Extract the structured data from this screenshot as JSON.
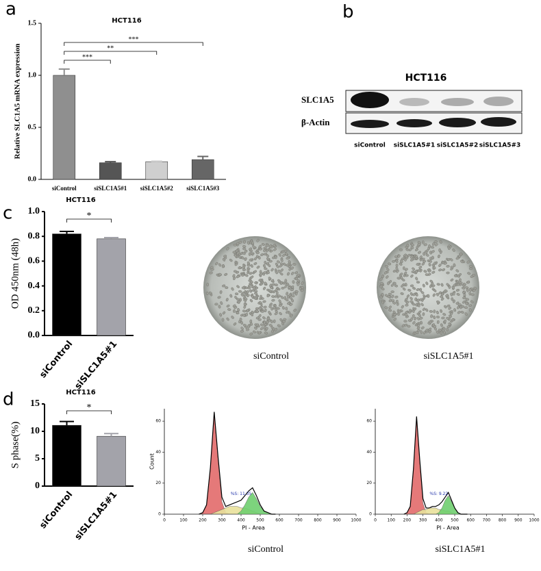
{
  "panel_labels": [
    "a",
    "b",
    "c",
    "d"
  ],
  "blot": {
    "title": "HCT116",
    "rows": [
      "SLC1A5",
      "β-Actin"
    ],
    "lanes": [
      "siControl",
      "siSLC1A5#1",
      "siSLC1A5#2",
      "siSLC1A5#3"
    ]
  },
  "micrographs": [
    "siControl",
    "siSLC1A5#1"
  ],
  "chart_data": [
    {
      "type": "bar",
      "title": "HCT116",
      "y_label": "Relative SLC1A5 mRNA expression",
      "categories": [
        "siControl",
        "siSLC1A5#1",
        "siSLC1A5#2",
        "siSLC1A5#3"
      ],
      "values": [
        1.0,
        0.16,
        0.17,
        0.19
      ],
      "errors": [
        0.06,
        0.01,
        0.005,
        0.03
      ],
      "colors": [
        "#8f8f8f",
        "#555555",
        "#cfcfcf",
        "#666666"
      ],
      "ylim": [
        0,
        1.5
      ],
      "yticks": [
        {
          "value": 0,
          "label": "0.0"
        },
        {
          "value": 0.5,
          "label": "0.5"
        },
        {
          "value": 1.0,
          "label": "1.0"
        },
        {
          "value": 1.5,
          "label": "1.5"
        }
      ],
      "brackets": [
        {
          "label": "***",
          "between": [
            "siControl",
            "siSLC1A5#1"
          ]
        },
        {
          "label": "**",
          "between": [
            "siControl",
            "siSLC1A5#2"
          ]
        },
        {
          "label": "***",
          "between": [
            "siControl",
            "siSLC1A5#3"
          ]
        }
      ]
    },
    {
      "type": "bar",
      "title": "HCT116",
      "y_label": "OD 450nm (48h)",
      "categories": [
        "siControl",
        "siSLC1A5#1"
      ],
      "values": [
        0.82,
        0.78
      ],
      "errors": [
        0.02,
        0.01
      ],
      "colors": [
        "#000000",
        "#a3a3aa"
      ],
      "ylim": [
        0,
        1.0
      ],
      "yticks": [
        {
          "value": 0,
          "label": "0.0"
        },
        {
          "value": 0.2,
          "label": "0.2"
        },
        {
          "value": 0.4,
          "label": "0.4"
        },
        {
          "value": 0.6,
          "label": "0.6"
        },
        {
          "value": 0.8,
          "label": "0.8"
        },
        {
          "value": 1.0,
          "label": "1.0"
        }
      ],
      "brackets": [
        {
          "label": "*",
          "between": [
            "siControl",
            "siSLC1A5#1"
          ]
        }
      ]
    },
    {
      "type": "bar",
      "title": "HCT116",
      "y_label": "S phase(%)",
      "categories": [
        "siControl",
        "siSLC1A5#1"
      ],
      "values": [
        11.1,
        9.1
      ],
      "errors": [
        0.7,
        0.5
      ],
      "colors": [
        "#000000",
        "#a3a3aa"
      ],
      "ylim": [
        0,
        15
      ],
      "yticks": [
        0,
        5,
        10,
        15
      ],
      "brackets": [
        {
          "label": "*",
          "between": [
            "siControl",
            "siSLC1A5#1"
          ]
        }
      ]
    },
    {
      "type": "flow",
      "x_label": "PI - Area",
      "y_label": "Count",
      "annotation": "%S: 11.35",
      "caption": "siControl",
      "xlim": [
        0,
        1000
      ],
      "ylim": [
        0,
        68
      ],
      "xticks": [
        0,
        100,
        200,
        300,
        400,
        500,
        600,
        700,
        800,
        900,
        1000
      ],
      "yticks": [
        0,
        20,
        40,
        60
      ],
      "x": [
        180,
        200,
        220,
        240,
        260,
        280,
        300,
        320,
        340,
        360,
        380,
        400,
        420,
        440,
        460,
        480,
        500,
        520,
        540,
        560,
        580
      ],
      "series": [
        {
          "color": "#e36b6b",
          "values": [
            0,
            1,
            6,
            30,
            65,
            35,
            8,
            1,
            0,
            0,
            0,
            0,
            0,
            0,
            0,
            0,
            0,
            0,
            0,
            0,
            0
          ]
        },
        {
          "color": "#e9e29c",
          "values": [
            0,
            0,
            0,
            0,
            1,
            2,
            3,
            4,
            5,
            5,
            5,
            4,
            4,
            3,
            2,
            1,
            0,
            0,
            0,
            0,
            0
          ]
        },
        {
          "color": "#6fcf6f",
          "values": [
            0,
            0,
            0,
            0,
            0,
            0,
            0,
            0,
            0,
            0,
            0,
            2,
            6,
            11,
            14,
            10,
            5,
            2,
            1,
            0,
            0
          ]
        },
        {
          "color": "#000000",
          "values": [
            0,
            1,
            6,
            30,
            66,
            37,
            11,
            5,
            6,
            7,
            8,
            9,
            12,
            15,
            17,
            12,
            6,
            2,
            1,
            0,
            0
          ]
        }
      ]
    },
    {
      "type": "flow",
      "x_label": "PI - Area",
      "annotation": "%S: 9.22",
      "caption": "siSLC1A5#1",
      "xlim": [
        0,
        1000
      ],
      "ylim": [
        0,
        68
      ],
      "xticks": [
        0,
        100,
        200,
        300,
        400,
        500,
        600,
        700,
        800,
        900,
        1000
      ],
      "yticks": [
        0,
        20,
        40,
        60
      ],
      "x": [
        180,
        200,
        220,
        240,
        260,
        280,
        300,
        320,
        340,
        360,
        380,
        400,
        420,
        440,
        460,
        480,
        500,
        520,
        540,
        560,
        580
      ],
      "series": [
        {
          "color": "#e36b6b",
          "values": [
            0,
            1,
            5,
            28,
            62,
            33,
            7,
            1,
            0,
            0,
            0,
            0,
            0,
            0,
            0,
            0,
            0,
            0,
            0,
            0,
            0
          ]
        },
        {
          "color": "#e9e29c",
          "values": [
            0,
            0,
            0,
            0,
            1,
            2,
            3,
            3,
            4,
            4,
            4,
            3,
            3,
            2,
            2,
            1,
            0,
            0,
            0,
            0,
            0
          ]
        },
        {
          "color": "#6fcf6f",
          "values": [
            0,
            0,
            0,
            0,
            0,
            0,
            0,
            0,
            0,
            0,
            0,
            1,
            4,
            9,
            12,
            8,
            4,
            1,
            0,
            0,
            0
          ]
        },
        {
          "color": "#000000",
          "values": [
            0,
            1,
            5,
            29,
            63,
            35,
            10,
            4,
            4,
            5,
            5,
            6,
            8,
            11,
            14,
            9,
            4,
            1,
            0,
            0,
            0
          ]
        }
      ]
    }
  ]
}
